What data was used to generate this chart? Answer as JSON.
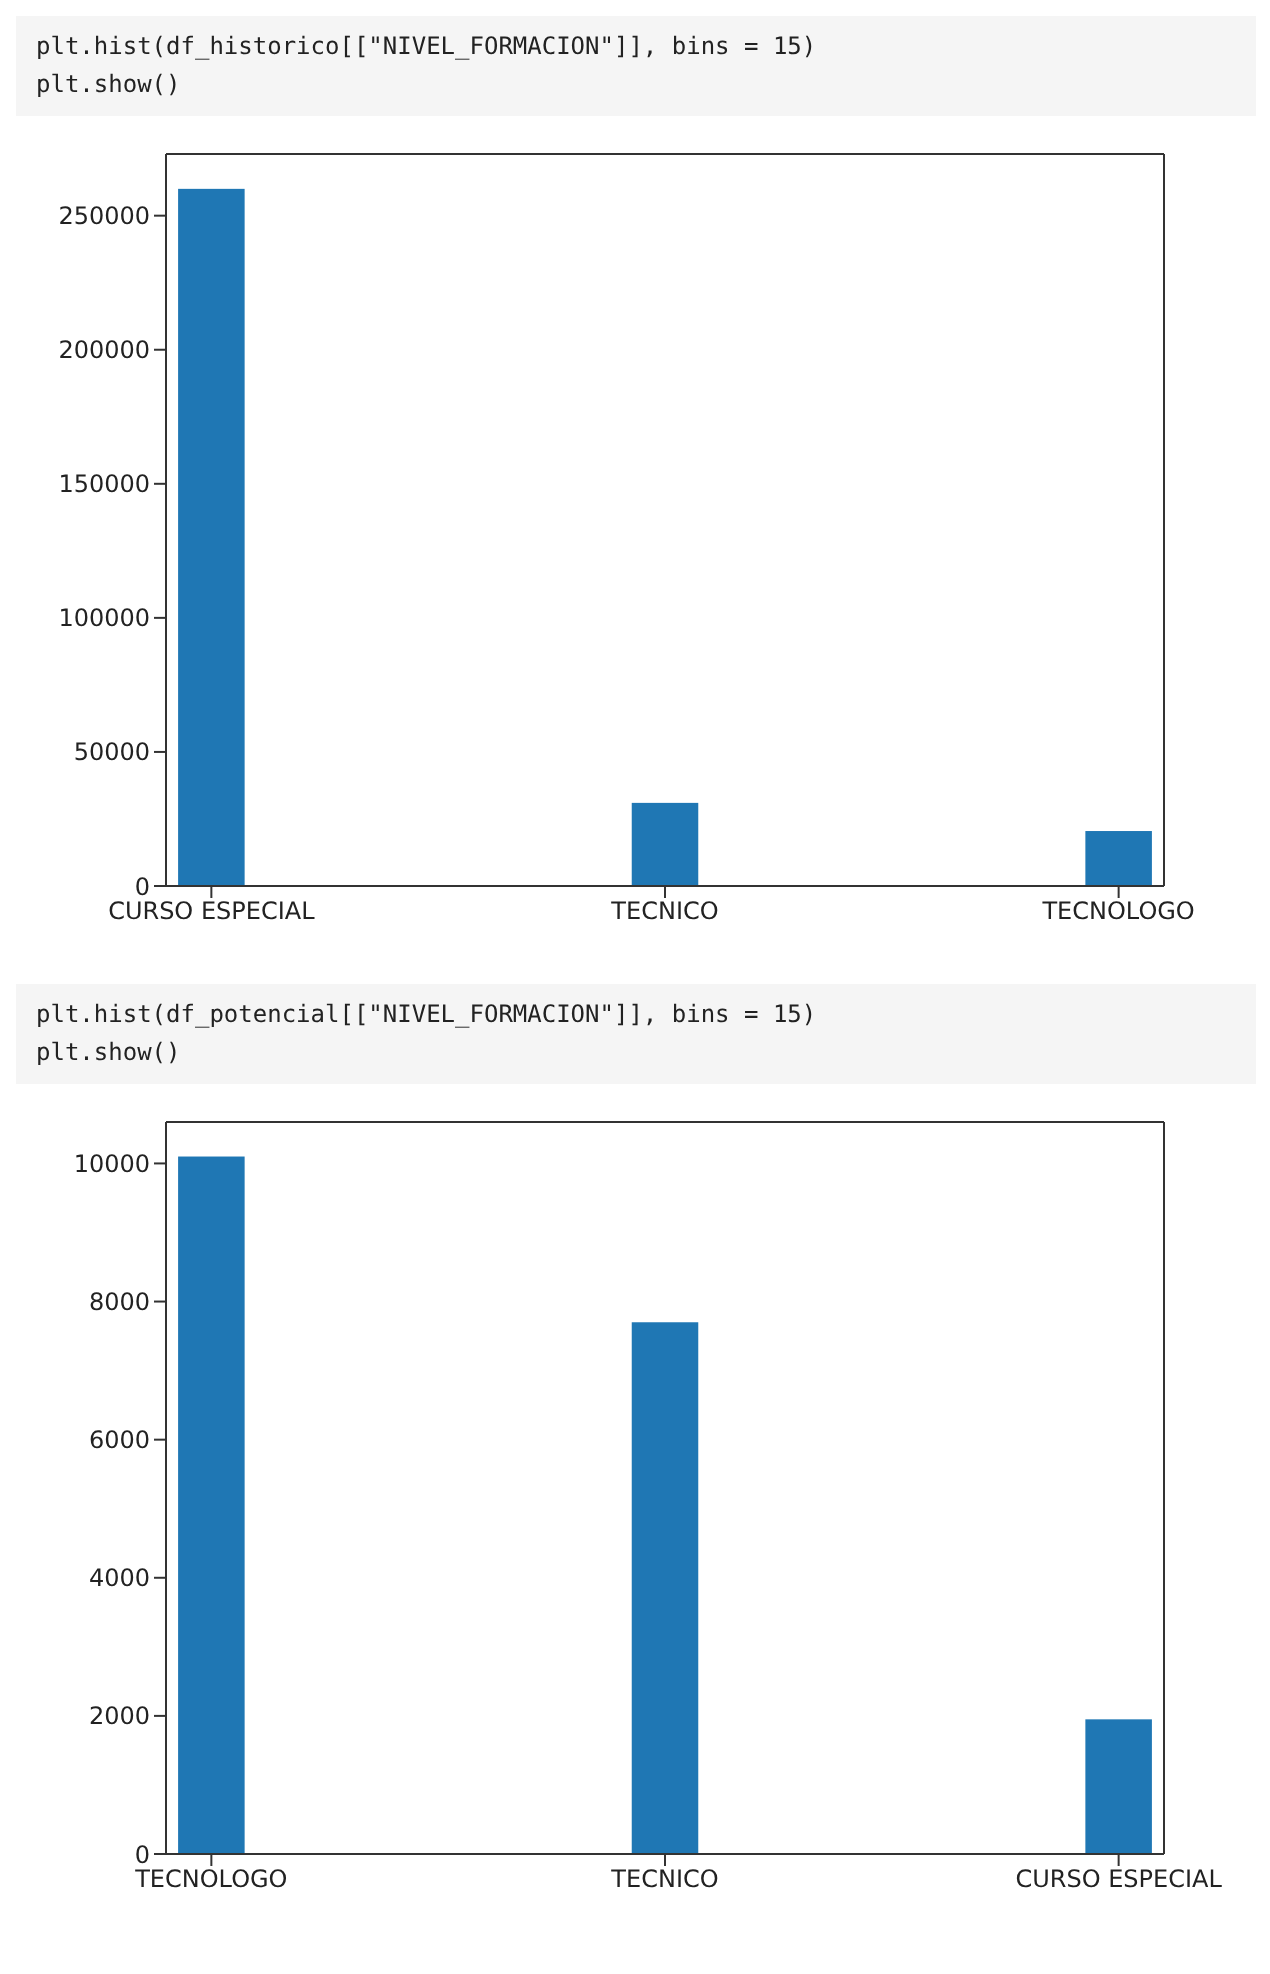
{
  "chart_data": [
    {
      "type": "bar",
      "annotations": [
        "plt.hist(df_historico[[\"NIVEL_FORMACION\"]], bins = 15)",
        "plt.show()"
      ],
      "categories": [
        "CURSO ESPECIAL",
        "TECNICO",
        "TECNOLOGO"
      ],
      "values": [
        260000,
        31000,
        20500
      ],
      "color": "#1f77b4",
      "ylim": [
        0,
        273000
      ],
      "yticks": [
        0,
        50000,
        100000,
        150000,
        200000,
        250000
      ],
      "grid": false
    },
    {
      "type": "bar",
      "annotations": [
        "plt.hist(df_potencial[[\"NIVEL_FORMACION\"]], bins = 15)",
        "plt.show()"
      ],
      "categories": [
        "TECNOLOGO",
        "TECNICO",
        "CURSO ESPECIAL"
      ],
      "values": [
        10100,
        7700,
        1950
      ],
      "color": "#1f77b4",
      "ylim": [
        0,
        10600
      ],
      "yticks": [
        0,
        2000,
        4000,
        6000,
        8000,
        10000
      ],
      "grid": false
    }
  ]
}
